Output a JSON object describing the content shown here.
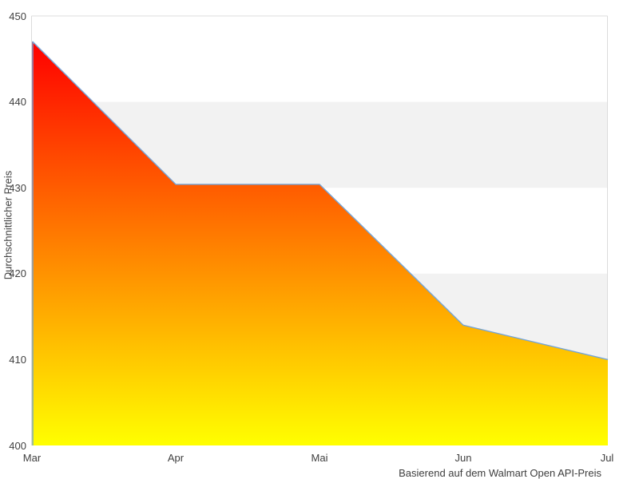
{
  "chart_data": {
    "type": "area",
    "title": "",
    "xlabel": "",
    "ylabel": "Durchschnittlicher Preis",
    "caption": "Basierend auf dem Walmart Open API-Preis",
    "categories": [
      "Mar",
      "Apr",
      "Mai",
      "Jun",
      "Jul"
    ],
    "values": [
      447,
      430.4,
      430.4,
      414,
      410
    ],
    "ylim": [
      400,
      450
    ],
    "yticks": [
      450,
      440,
      430,
      420,
      410,
      400
    ],
    "legend": "none",
    "layout_hints": {
      "grid": "alternating horizontal bands, gray between 440-430 and 420-410",
      "axis_border": "top, left and right borders only, no tick marks"
    },
    "colors": {
      "area_gradient_top": "#ff0000",
      "area_gradient_bottom": "#ffff00",
      "line": "#74a5d8",
      "band_gray": "#f2f2f2",
      "plot_border": "#dcdcdc",
      "text": "#404040",
      "background": "#ffffff"
    }
  }
}
